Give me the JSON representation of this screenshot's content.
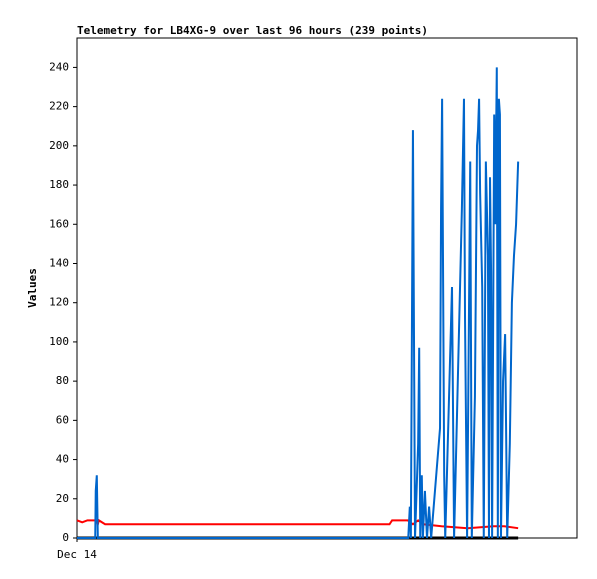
{
  "chart_data": {
    "type": "line",
    "title": "Telemetry for LB4XG-9 over last 96 hours (239 points)",
    "y_label": "Values",
    "xlim": [
      0,
      96
    ],
    "xticks": [
      {
        "value": 0,
        "label": "Dec 14"
      }
    ],
    "ylim": [
      0,
      255
    ],
    "yticks": [
      0,
      20,
      40,
      60,
      80,
      100,
      120,
      140,
      160,
      180,
      200,
      220,
      240
    ],
    "series": [
      {
        "color": "#000000",
        "x": [
          0,
          84.7
        ],
        "values": [
          0,
          0
        ]
      },
      {
        "color": "#ff0000",
        "x": [
          0,
          1.0,
          2.0,
          3.6,
          4.0,
          4.2,
          5.4,
          60,
          60.5,
          63.5,
          64.5,
          65.5,
          66.5,
          70,
          75,
          80,
          82,
          84.7
        ],
        "values": [
          9,
          8,
          9,
          9,
          7,
          9,
          7,
          7,
          9,
          9,
          7,
          9,
          7,
          6,
          5,
          6,
          6,
          5
        ]
      },
      {
        "color": "#0066cc",
        "x": [
          0,
          3.5,
          3.6,
          3.8,
          4.0,
          63.6,
          63.9,
          64.1,
          64.5,
          64.9,
          65.5,
          65.7,
          65.9,
          66.2,
          66.4,
          66.8,
          67.2,
          67.6,
          68.0,
          69.7,
          69.9,
          70.1,
          70.5,
          70.7,
          72.0,
          72.2,
          72.4,
          73.9,
          74.3,
          74.5,
          74.9,
          75.5,
          75.8,
          76.4,
          76.8,
          77.0,
          77.2,
          77.4,
          77.8,
          78.1,
          78.5,
          78.9,
          79.1,
          79.3,
          79.5,
          79.7,
          80.1,
          80.3,
          80.6,
          80.8,
          81.0,
          81.2,
          81.4,
          81.8,
          82.2,
          82.6,
          83.1,
          83.5,
          83.9,
          84.3,
          84.7
        ],
        "values": [
          0,
          0,
          24,
          32,
          0,
          0,
          16,
          0,
          208,
          0,
          48,
          97,
          0,
          32,
          0,
          24,
          0,
          16,
          0,
          56,
          168,
          224,
          32,
          0,
          128,
          64,
          0,
          168,
          224,
          112,
          0,
          192,
          0,
          72,
          200,
          208,
          224,
          176,
          128,
          0,
          192,
          144,
          0,
          184,
          136,
          0,
          216,
          160,
          240,
          0,
          224,
          216,
          0,
          80,
          104,
          0,
          48,
          120,
          144,
          160,
          192
        ]
      }
    ]
  }
}
